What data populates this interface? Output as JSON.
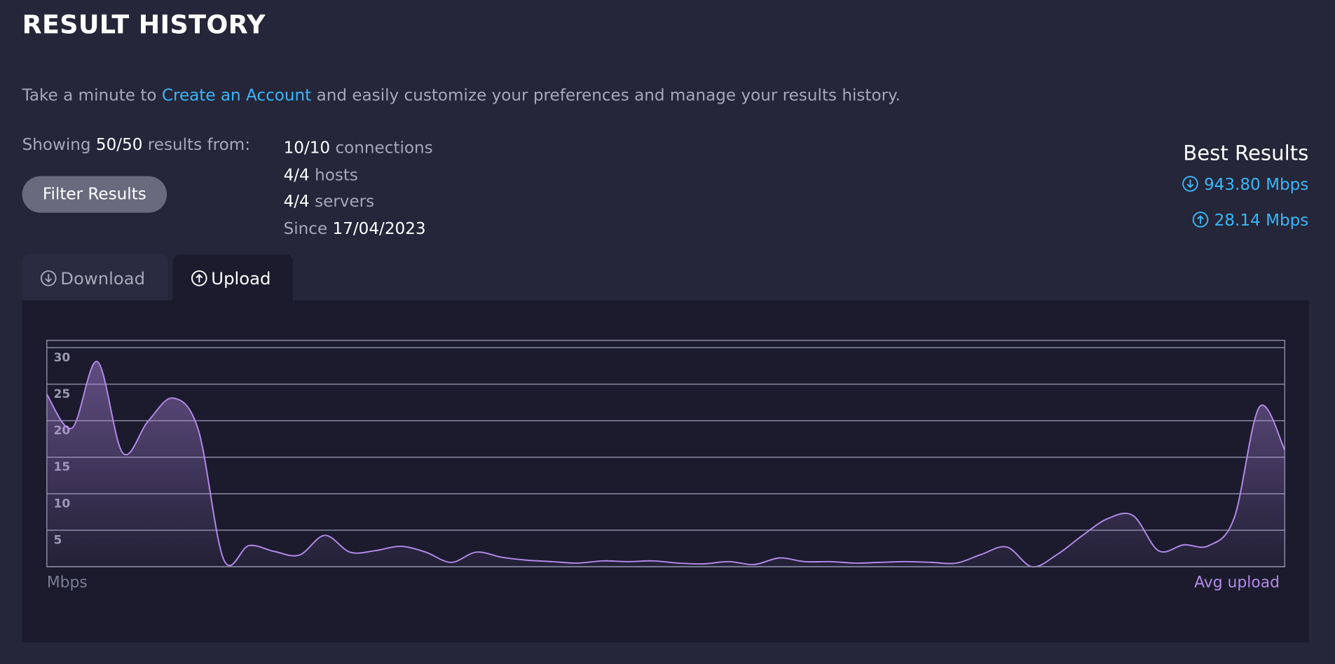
{
  "header": {
    "title": "RESULT HISTORY"
  },
  "intro": {
    "before": "Take a minute to",
    "link": "Create an Account",
    "after": "and easily customize your preferences and manage your results history."
  },
  "summary": {
    "prefix": "Showing",
    "count": "50/50",
    "suffix": "results from:",
    "stats": [
      {
        "value": "10/10",
        "label": "connections"
      },
      {
        "value": "4/4",
        "label": "hosts"
      },
      {
        "value": "4/4",
        "label": "servers"
      }
    ],
    "since_label": "Since",
    "since_date": "17/04/2023"
  },
  "filter_button": "Filter Results",
  "best_results": {
    "title": "Best Results",
    "download": "943.80 Mbps",
    "upload": "28.14 Mbps"
  },
  "tabs": [
    "Download",
    "Upload"
  ],
  "chart_data": {
    "type": "area",
    "y_label": "Mbps",
    "series": [
      {
        "name": "Avg upload",
        "color": "#b48ae8",
        "values": [
          23.6,
          19.0,
          28.1,
          15.6,
          19.9,
          23.1,
          18.7,
          1.0,
          2.9,
          2.1,
          1.6,
          4.3,
          2.0,
          2.2,
          2.8,
          2.0,
          0.6,
          2.0,
          1.3,
          0.9,
          0.7,
          0.5,
          0.8,
          0.7,
          0.8,
          0.5,
          0.4,
          0.7,
          0.3,
          1.2,
          0.7,
          0.7,
          0.5,
          0.6,
          0.7,
          0.6,
          0.5,
          1.7,
          2.7,
          0.0,
          1.7,
          4.3,
          6.6,
          7.0,
          2.2,
          3.0,
          2.9,
          6.7,
          21.9,
          16.0
        ]
      }
    ],
    "ylim": [
      0,
      31
    ],
    "yticks": [
      5,
      10,
      15,
      20,
      25,
      30
    ],
    "grid": true
  }
}
